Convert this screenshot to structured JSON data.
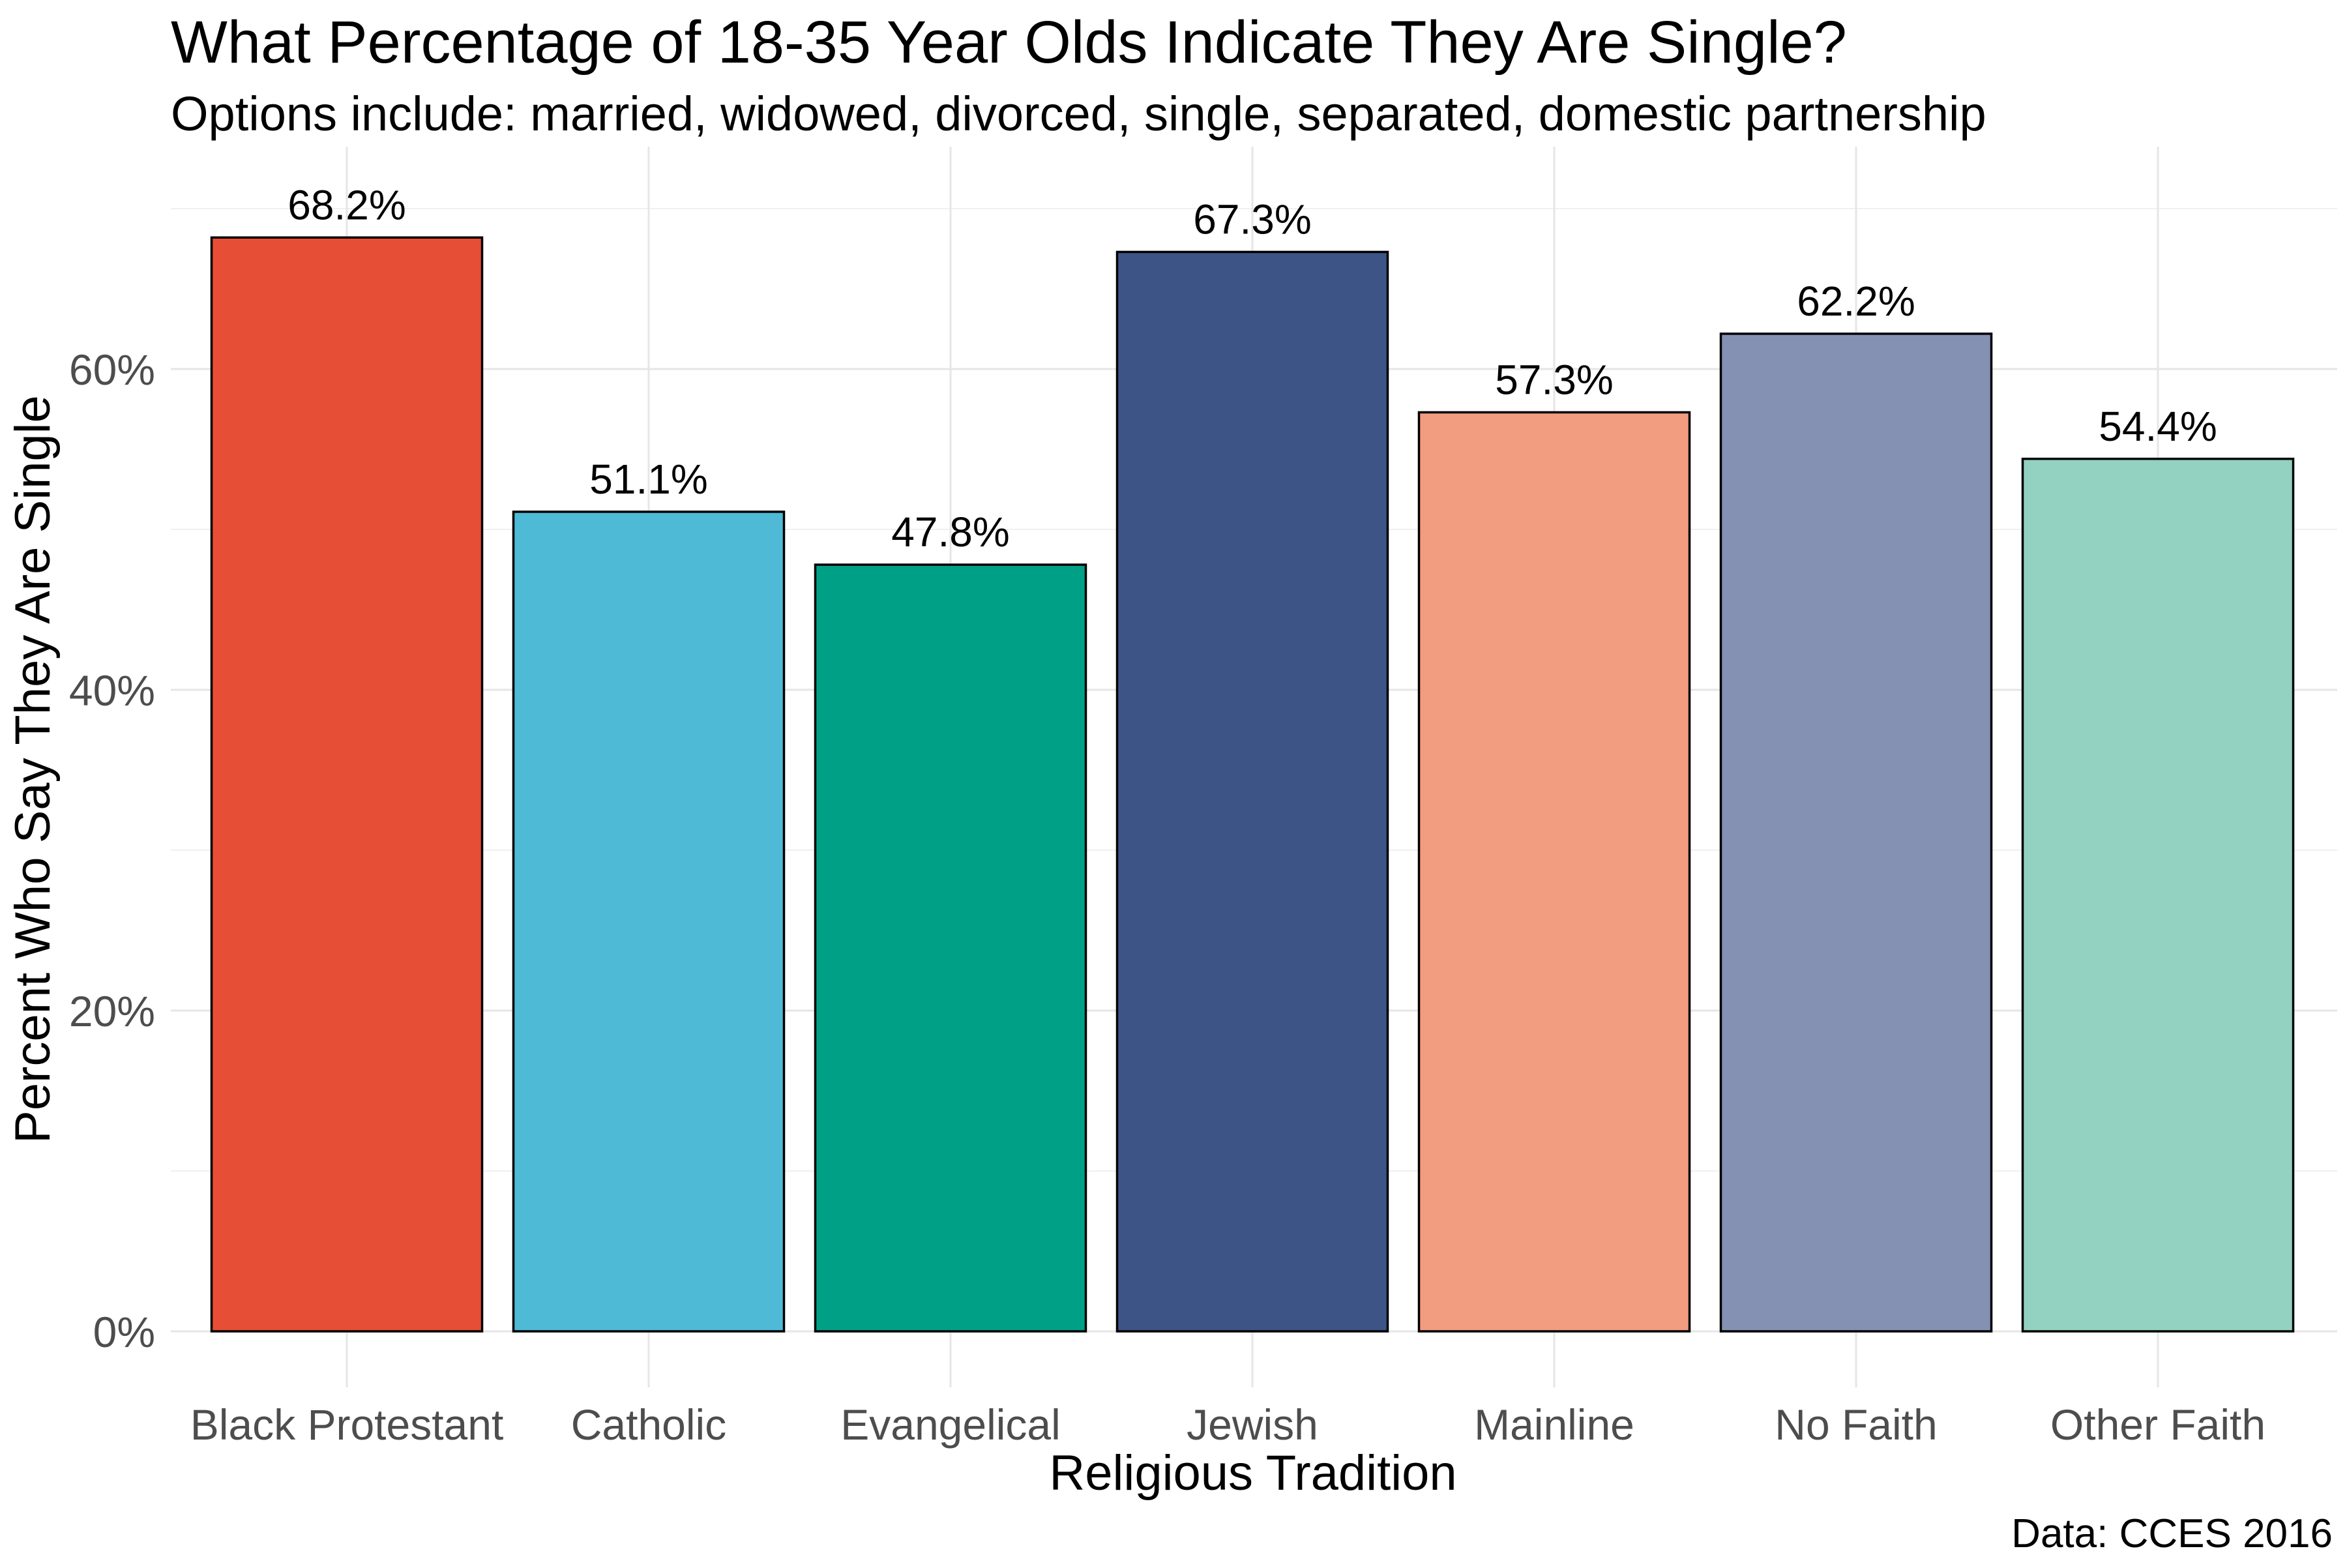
{
  "chart_data": {
    "type": "bar",
    "title": "What Percentage of 18-35 Year Olds Indicate They Are Single?",
    "subtitle": "Options include: married, widowed, divorced, single, separated, domestic partnership",
    "xlabel": "Religious Tradition",
    "ylabel": "Percent Who Say They Are Single",
    "caption": "Data: CCES 2016",
    "categories": [
      "Black Protestant",
      "Catholic",
      "Evangelical",
      "Jewish",
      "Mainline",
      "No Faith",
      "Other Faith"
    ],
    "values": [
      68.2,
      51.1,
      47.8,
      67.3,
      57.3,
      62.2,
      54.4
    ],
    "value_labels": [
      "68.2%",
      "51.1%",
      "47.8%",
      "67.3%",
      "57.3%",
      "62.2%",
      "54.4%"
    ],
    "colors": [
      "#E64E36",
      "#4EBAD6",
      "#00A086",
      "#3D5486",
      "#F29C80",
      "#8591B3",
      "#93D1C1"
    ],
    "ylim": [
      0,
      72
    ],
    "yticks": [
      0,
      20,
      40,
      60
    ],
    "ytick_labels": [
      "0%",
      "20%",
      "40%",
      "60%"
    ],
    "grid": true,
    "legend": "none"
  }
}
